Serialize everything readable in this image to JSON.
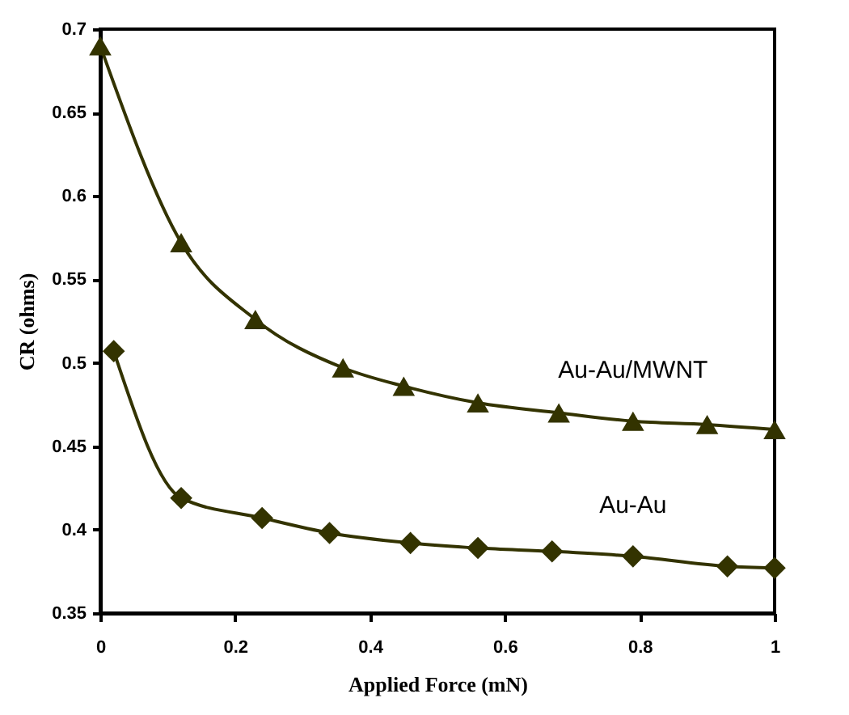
{
  "chart_data": {
    "type": "line",
    "xlabel": "Applied Force (mN)",
    "ylabel": "CR (ohms)",
    "xlim": [
      0,
      1
    ],
    "xticks": [
      0,
      0.2,
      0.4,
      0.6,
      0.8,
      1
    ],
    "ylim": [
      0.35,
      0.7
    ],
    "yticks": [
      0.35,
      0.4,
      0.45,
      0.5,
      0.55,
      0.6,
      0.65,
      0.7
    ],
    "line_style": "solid",
    "series": [
      {
        "name": "Au-Au/MWNT",
        "color": "#333300",
        "marker": "triangle",
        "x": [
          0,
          0.12,
          0.23,
          0.36,
          0.45,
          0.56,
          0.68,
          0.79,
          0.9,
          1
        ],
        "values": [
          0.69,
          0.572,
          0.526,
          0.497,
          0.486,
          0.476,
          0.47,
          0.465,
          0.463,
          0.46
        ]
      },
      {
        "name": "Au-Au",
        "color": "#333300",
        "marker": "diamond",
        "x": [
          0.02,
          0.12,
          0.24,
          0.34,
          0.46,
          0.56,
          0.67,
          0.79,
          0.93,
          1
        ],
        "values": [
          0.507,
          0.419,
          0.407,
          0.398,
          0.392,
          0.389,
          0.387,
          0.384,
          0.378,
          0.377
        ]
      }
    ]
  }
}
